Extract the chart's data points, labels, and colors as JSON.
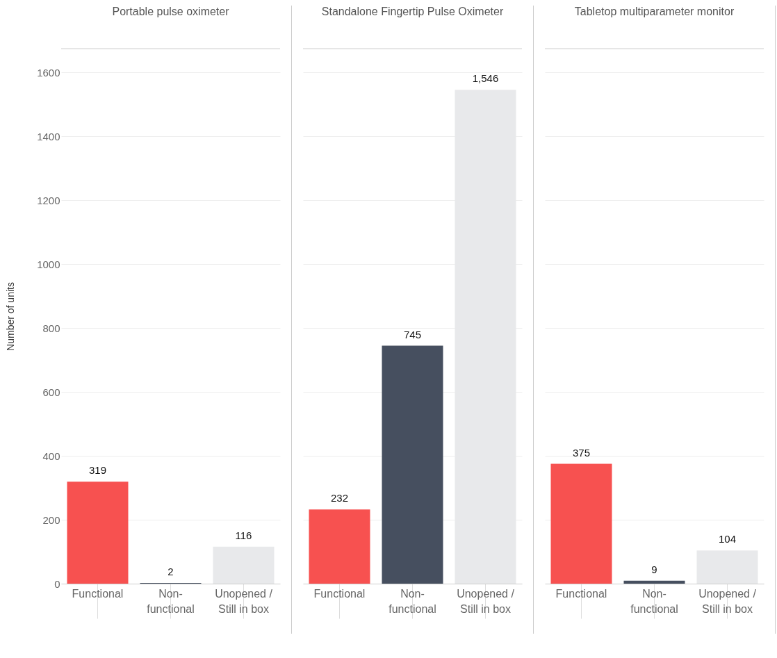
{
  "chart_data": [
    {
      "type": "bar",
      "title": "Portable pulse oximeter",
      "ylabel": "Number of units",
      "categories": [
        "Functional",
        "Non-functional",
        "Unopened / Still in box"
      ],
      "values": [
        319,
        2,
        116
      ],
      "value_labels": [
        "319",
        "2",
        "116"
      ],
      "colors": [
        "#f75150",
        "#464f5f",
        "#e8e9eb"
      ],
      "ylim": [
        0,
        1675
      ],
      "yticks": [
        0,
        200,
        400,
        600,
        800,
        1000,
        1200,
        1400,
        1600
      ],
      "grid": "y"
    },
    {
      "type": "bar",
      "title": "Standalone Fingertip Pulse Oximeter",
      "categories": [
        "Functional",
        "Non-functional",
        "Unopened / Still in box"
      ],
      "values": [
        232,
        745,
        1546
      ],
      "value_labels": [
        "232",
        "745",
        "1,546"
      ],
      "colors": [
        "#f75150",
        "#464f5f",
        "#e8e9eb"
      ],
      "ylim": [
        0,
        1675
      ],
      "yticks": [
        0,
        200,
        400,
        600,
        800,
        1000,
        1200,
        1400,
        1600
      ],
      "grid": "y",
      "tick_labels": "x"
    },
    {
      "type": "bar",
      "title": "Tabletop multiparameter monitor",
      "categories": [
        "Functional",
        "Non-functional",
        "Unopened / Still in box"
      ],
      "values": [
        375,
        9,
        104
      ],
      "value_labels": [
        "375",
        "9",
        "104"
      ],
      "colors": [
        "#f75150",
        "#464f5f",
        "#e8e9eb"
      ],
      "ylim": [
        0,
        1675
      ],
      "yticks": [
        0,
        200,
        400,
        600,
        800,
        1000,
        1200,
        1400,
        1600
      ],
      "grid": "y",
      "tick_labels": "x"
    }
  ]
}
